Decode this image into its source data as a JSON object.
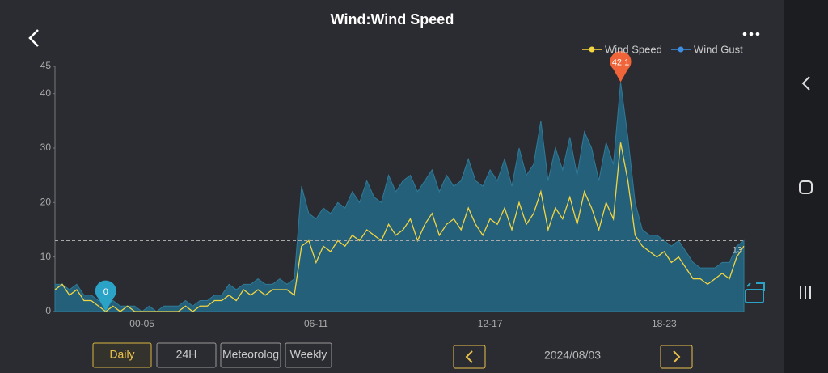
{
  "header": {
    "title": "Wind:Wind Speed"
  },
  "chart_data": {
    "type": "line",
    "categories": [
      null,
      null,
      null,
      null,
      null,
      null,
      null,
      null,
      null,
      null,
      null,
      null,
      "00-05",
      null,
      null,
      null,
      null,
      null,
      null,
      null,
      null,
      null,
      null,
      null,
      null,
      null,
      null,
      null,
      null,
      null,
      null,
      null,
      null,
      null,
      null,
      null,
      "06-11",
      null,
      null,
      null,
      null,
      null,
      null,
      null,
      null,
      null,
      null,
      null,
      null,
      null,
      null,
      null,
      null,
      null,
      null,
      null,
      null,
      null,
      null,
      null,
      "12-17",
      null,
      null,
      null,
      null,
      null,
      null,
      null,
      null,
      null,
      null,
      null,
      null,
      null,
      null,
      null,
      null,
      null,
      null,
      null,
      null,
      null,
      null,
      null,
      "18-23",
      null,
      null,
      null,
      null,
      null,
      null,
      null,
      null,
      null,
      null,
      null
    ],
    "series": [
      {
        "name": "Wind Speed",
        "color": "#f2d541",
        "values": [
          4,
          5,
          3,
          4,
          2,
          2,
          1,
          0,
          1,
          0,
          1,
          0,
          0,
          0,
          0,
          0,
          0,
          0,
          1,
          0,
          1,
          1,
          2,
          2,
          3,
          2,
          4,
          3,
          4,
          3,
          4,
          4,
          4,
          3,
          12,
          13,
          9,
          12,
          11,
          13,
          12,
          14,
          13,
          15,
          14,
          13,
          16,
          14,
          15,
          17,
          13,
          16,
          18,
          14,
          16,
          17,
          15,
          19,
          16,
          14,
          17,
          16,
          19,
          15,
          20,
          16,
          18,
          22,
          15,
          19,
          17,
          21,
          16,
          22,
          19,
          15,
          20,
          17,
          31,
          24,
          14,
          12,
          11,
          10,
          11,
          9,
          10,
          8,
          6,
          6,
          5,
          6,
          7,
          6,
          10,
          12
        ]
      },
      {
        "name": "Wind Gust",
        "color": "#3d8fe6",
        "values": [
          5,
          5,
          4,
          5,
          3,
          3,
          2,
          3,
          2,
          1,
          1,
          1,
          0,
          1,
          0,
          1,
          1,
          1,
          2,
          1,
          2,
          2,
          3,
          3,
          5,
          4,
          5,
          5,
          6,
          5,
          5,
          6,
          5,
          6,
          23,
          18,
          17,
          19,
          18,
          20,
          19,
          22,
          20,
          24,
          21,
          20,
          25,
          22,
          24,
          25,
          22,
          24,
          26,
          22,
          25,
          23,
          24,
          28,
          24,
          23,
          26,
          24,
          28,
          23,
          30,
          25,
          27,
          35,
          24,
          30,
          26,
          32,
          25,
          33,
          30,
          24,
          31,
          27,
          42.1,
          32,
          20,
          15,
          14,
          14,
          13,
          12,
          13,
          11,
          9,
          8,
          8,
          8,
          9,
          9,
          12,
          13
        ]
      }
    ],
    "ylim": [
      0,
      45
    ],
    "yticks": [
      0,
      10,
      20,
      30,
      40,
      45
    ],
    "reference_line": 13
  },
  "footer": {
    "tabs": [
      "Daily",
      "24H",
      "Meteorolog",
      "Weekly"
    ],
    "date": "2024/08/03"
  }
}
